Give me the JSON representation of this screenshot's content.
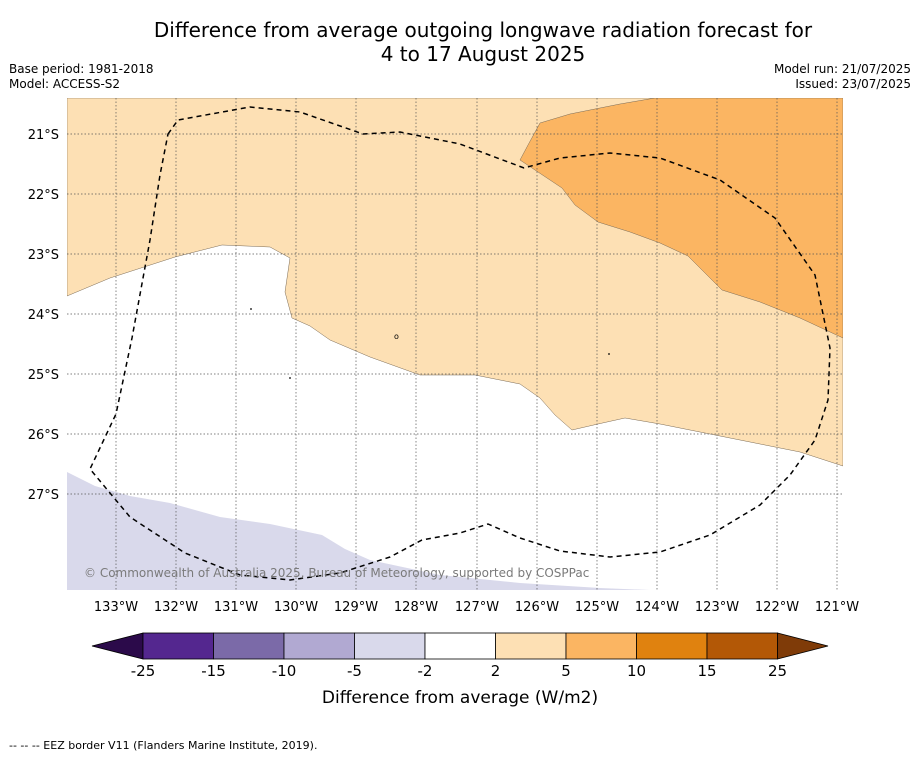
{
  "title_line1": "Difference from average outgoing longwave radiation forecast for",
  "title_line2": "4 to 17 August 2025",
  "base_period": "Base period: 1981-2018",
  "model": "Model: ACCESS-S2",
  "model_run": "Model run: 21/07/2025",
  "issued": "Issued: 23/07/2025",
  "copyright": "© Commonwealth of Australia 2025, Bureau of Meteorology, supported by COSPPac",
  "lat_labels": [
    "21°S",
    "22°S",
    "23°S",
    "24°S",
    "25°S",
    "26°S",
    "27°S"
  ],
  "lon_labels": [
    "133°W",
    "132°W",
    "131°W",
    "130°W",
    "129°W",
    "128°W",
    "127°W",
    "126°W",
    "125°W",
    "124°W",
    "123°W",
    "122°W",
    "121°W"
  ],
  "colorbar": {
    "label": "Difference from average (W/m2)",
    "ticks": [
      "-25",
      "-15",
      "-10",
      "-5",
      "-2",
      "2",
      "5",
      "10",
      "15",
      "25"
    ],
    "colors": [
      "#2b0a4a",
      "#54278f",
      "#7b6aa8",
      "#b1a9d2",
      "#d9d9eb",
      "#ffffff",
      "#fde0b4",
      "#fbb562",
      "#e0820f",
      "#b35806",
      "#7f3b08"
    ]
  },
  "legend_note": "--  --  -- EEZ border V11 (Flanders Marine Institute, 2019)."
}
